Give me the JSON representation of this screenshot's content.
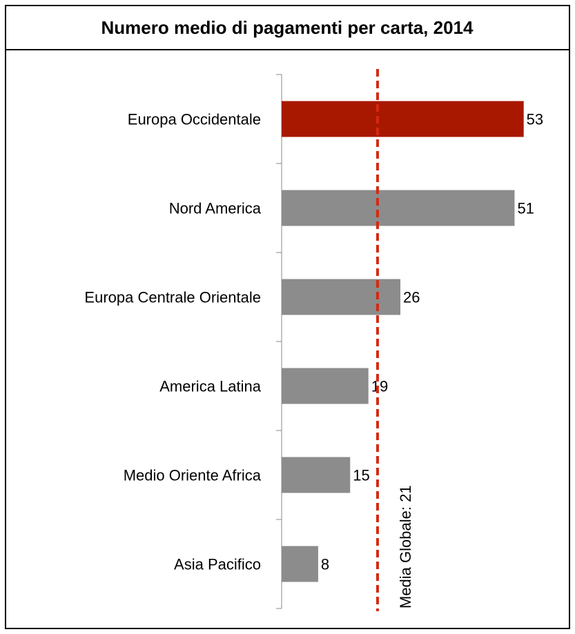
{
  "chart_data": {
    "type": "bar",
    "orientation": "horizontal",
    "title": "Numero medio di pagamenti per carta, 2014",
    "categories": [
      "Europa Occidentale",
      "Nord America",
      "Europa Centrale Orientale",
      "America Latina",
      "Medio Oriente Africa",
      "Asia Pacifico"
    ],
    "values": [
      53,
      51,
      26,
      19,
      15,
      8
    ],
    "colors": [
      "#a81800",
      "#8c8c8c",
      "#8c8c8c",
      "#8c8c8c",
      "#8c8c8c",
      "#8c8c8c"
    ],
    "xlim": [
      0,
      60
    ],
    "reference_line": {
      "value": 21,
      "label": "Media Globale: 21",
      "color": "#d42a10"
    }
  }
}
